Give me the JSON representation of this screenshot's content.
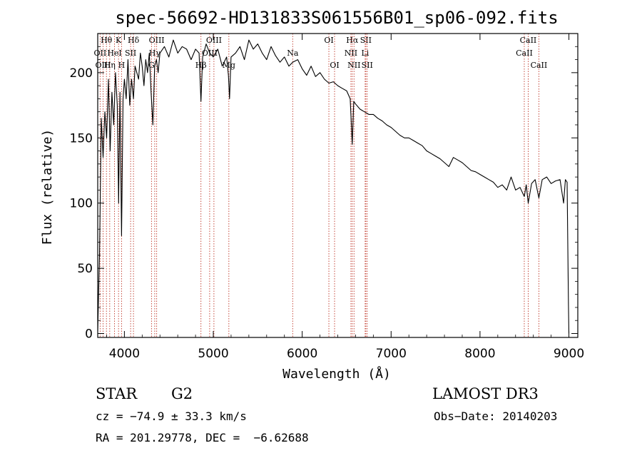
{
  "chart_data": {
    "type": "line",
    "title": "spec-56692-HD131833S061556B01_sp06-092.fits",
    "xlabel": "Wavelength (Å)",
    "ylabel": "Flux (relative)",
    "xlim": [
      3700,
      9100
    ],
    "ylim": [
      -3,
      230
    ],
    "xticks": [
      4000,
      5000,
      6000,
      7000,
      8000,
      9000
    ],
    "yticks": [
      0,
      50,
      100,
      150,
      200
    ],
    "series": [
      {
        "name": "flux",
        "x": [
          3700,
          3720,
          3740,
          3760,
          3780,
          3800,
          3820,
          3840,
          3860,
          3880,
          3900,
          3920,
          3935,
          3950,
          3968,
          3985,
          4000,
          4020,
          4040,
          4060,
          4080,
          4102,
          4120,
          4140,
          4160,
          4180,
          4200,
          4220,
          4240,
          4260,
          4280,
          4300,
          4320,
          4340,
          4360,
          4380,
          4400,
          4450,
          4500,
          4550,
          4600,
          4650,
          4700,
          4750,
          4800,
          4840,
          4861,
          4880,
          4920,
          4960,
          5000,
          5050,
          5100,
          5150,
          5170,
          5183,
          5200,
          5250,
          5300,
          5350,
          5400,
          5450,
          5500,
          5550,
          5600,
          5650,
          5700,
          5750,
          5800,
          5850,
          5893,
          5950,
          6000,
          6050,
          6100,
          6150,
          6200,
          6250,
          6300,
          6350,
          6400,
          6450,
          6500,
          6540,
          6563,
          6580,
          6600,
          6650,
          6700,
          6750,
          6800,
          6850,
          6900,
          6950,
          7000,
          7050,
          7100,
          7150,
          7200,
          7250,
          7300,
          7350,
          7400,
          7450,
          7500,
          7550,
          7600,
          7650,
          7700,
          7750,
          7800,
          7850,
          7900,
          7950,
          8000,
          8050,
          8100,
          8150,
          8200,
          8250,
          8300,
          8350,
          8400,
          8450,
          8498,
          8520,
          8542,
          8580,
          8620,
          8662,
          8700,
          8750,
          8800,
          8850,
          8900,
          8940,
          8960,
          8980,
          8995,
          9000
        ],
        "values": [
          2,
          60,
          165,
          135,
          170,
          150,
          195,
          140,
          185,
          160,
          200,
          175,
          100,
          185,
          75,
          180,
          195,
          180,
          210,
          175,
          195,
          180,
          205,
          200,
          195,
          215,
          205,
          190,
          210,
          200,
          215,
          185,
          160,
          205,
          210,
          200,
          215,
          220,
          212,
          225,
          215,
          220,
          218,
          210,
          218,
          215,
          178,
          212,
          222,
          215,
          212,
          218,
          205,
          212,
          198,
          180,
          212,
          215,
          220,
          210,
          225,
          218,
          222,
          215,
          210,
          220,
          213,
          208,
          212,
          205,
          208,
          210,
          203,
          198,
          205,
          197,
          200,
          195,
          192,
          193,
          190,
          188,
          186,
          180,
          145,
          178,
          176,
          172,
          170,
          168,
          168,
          165,
          163,
          160,
          158,
          155,
          152,
          150,
          150,
          148,
          146,
          144,
          140,
          138,
          136,
          134,
          131,
          128,
          135,
          133,
          131,
          128,
          125,
          124,
          122,
          120,
          118,
          116,
          112,
          114,
          110,
          120,
          110,
          112,
          105,
          114,
          100,
          115,
          118,
          104,
          118,
          120,
          115,
          117,
          118,
          100,
          118,
          116,
          22,
          0
        ]
      }
    ],
    "line_markers": [
      {
        "name": "Hθ",
        "x": 3798,
        "row": 1
      },
      {
        "name": "OII",
        "x": 3727,
        "row": 2
      },
      {
        "name": "OIII",
        "x": 3760,
        "row": 3
      },
      {
        "name": "K",
        "x": 3934,
        "row": 1
      },
      {
        "name": "HeI",
        "x": 3889,
        "row": 2
      },
      {
        "name": "Hη",
        "x": 3835,
        "row": 3
      },
      {
        "name": "Hδ",
        "x": 4102,
        "row": 1
      },
      {
        "name": "SII",
        "x": 4070,
        "row": 2
      },
      {
        "name": "H",
        "x": 3968,
        "row": 3
      },
      {
        "name": "OIII",
        "x": 4363,
        "row": 1
      },
      {
        "name": "Hγ",
        "x": 4341,
        "row": 2
      },
      {
        "name": "G",
        "x": 4305,
        "row": 3
      },
      {
        "name": "OIII",
        "x": 5007,
        "row": 1
      },
      {
        "name": "OIII",
        "x": 4959,
        "row": 2
      },
      {
        "name": "Hβ",
        "x": 4861,
        "row": 3
      },
      {
        "name": "Mg",
        "x": 5175,
        "row": 3
      },
      {
        "name": "Na",
        "x": 5893,
        "row": 2
      },
      {
        "name": "OI",
        "x": 6300,
        "row": 1
      },
      {
        "name": "OI",
        "x": 6364,
        "row": 3
      },
      {
        "name": "Hα",
        "x": 6563,
        "row": 1
      },
      {
        "name": "NII",
        "x": 6548,
        "row": 2
      },
      {
        "name": "NII",
        "x": 6583,
        "row": 3
      },
      {
        "name": "SII",
        "x": 6716,
        "row": 1
      },
      {
        "name": "Li",
        "x": 6708,
        "row": 2
      },
      {
        "name": "SII",
        "x": 6731,
        "row": 3
      },
      {
        "name": "CaII",
        "x": 8542,
        "row": 1
      },
      {
        "name": "CaII",
        "x": 8498,
        "row": 2
      },
      {
        "name": "CaII",
        "x": 8662,
        "row": 3
      }
    ]
  },
  "info": {
    "object_type": "STAR",
    "subclass": "G2",
    "survey": "LAMOST DR3",
    "cz": "cz = −74.9 ± 33.3 km/s",
    "obs_date": "Obs−Date: 20140203",
    "coords": "RA = 201.29778, DEC =  −6.62688"
  },
  "colors": {
    "spectrum": "#000000",
    "marker_line": "#c0392b",
    "axis": "#000000"
  }
}
